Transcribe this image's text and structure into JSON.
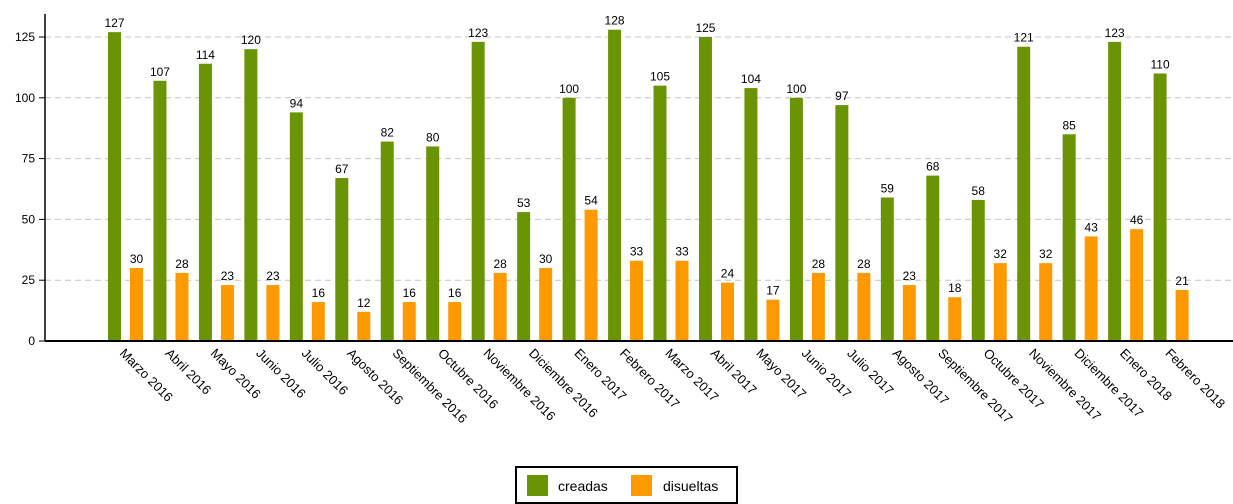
{
  "chart_data": {
    "type": "bar",
    "title": "",
    "xlabel": "",
    "ylabel": "",
    "ylim": [
      0,
      134
    ],
    "yticks": [
      0,
      25,
      50,
      75,
      100,
      125
    ],
    "grid": true,
    "legend_position": "bottom-center",
    "categories": [
      "Marzo 2016",
      "Abril 2016",
      "Mayo 2016",
      "Junio 2016",
      "Julio 2016",
      "Agosto 2016",
      "Septiembre 2016",
      "Octubre 2016",
      "Noviembre 2016",
      "Diciembre 2016",
      "Enero 2017",
      "Febrero 2017",
      "Marzo 2017",
      "Abril 2017",
      "Mayo 2017",
      "Junio 2017",
      "Julio 2017",
      "Agosto 2017",
      "Septiembre 2017",
      "Octubre 2017",
      "Noviembre 2017",
      "Diciembre 2017",
      "Enero 2018",
      "Febrero 2018"
    ],
    "series": [
      {
        "name": "creadas",
        "color": "#6b9404",
        "values": [
          127,
          107,
          114,
          120,
          94,
          67,
          82,
          80,
          123,
          53,
          100,
          128,
          105,
          125,
          104,
          100,
          97,
          59,
          68,
          58,
          121,
          85,
          123,
          110
        ]
      },
      {
        "name": "disueltas",
        "color": "#ff9900",
        "values": [
          30,
          28,
          23,
          23,
          16,
          12,
          16,
          16,
          28,
          30,
          54,
          33,
          33,
          24,
          17,
          28,
          28,
          23,
          18,
          32,
          32,
          43,
          46,
          21
        ]
      }
    ]
  }
}
